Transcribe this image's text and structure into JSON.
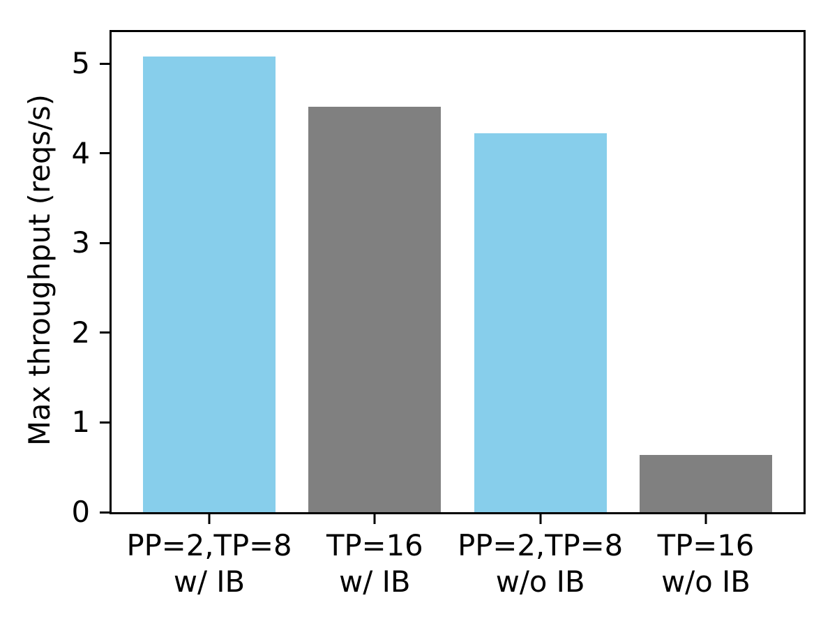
{
  "chart_data": {
    "type": "bar",
    "title": "",
    "xlabel": "",
    "ylabel": "Max throughput (reqs/s)",
    "categories": [
      "PP=2,TP=8\nw/ IB",
      "TP=16\nw/ IB",
      "PP=2,TP=8\nw/o IB",
      "TP=16\nw/o IB"
    ],
    "values": [
      5.08,
      4.52,
      4.22,
      0.64
    ],
    "bar_colors": [
      "#87CEEB",
      "#808080",
      "#87CEEB",
      "#808080"
    ],
    "yticks": [
      0,
      1,
      2,
      3,
      4,
      5
    ],
    "ylim": [
      0,
      5.35
    ],
    "grid": false,
    "legend": null,
    "layout": {
      "xlim": [
        -0.59,
        3.59
      ],
      "bar_width": 0.8,
      "spine_color": "#000000",
      "background_color": "#ffffff"
    }
  }
}
